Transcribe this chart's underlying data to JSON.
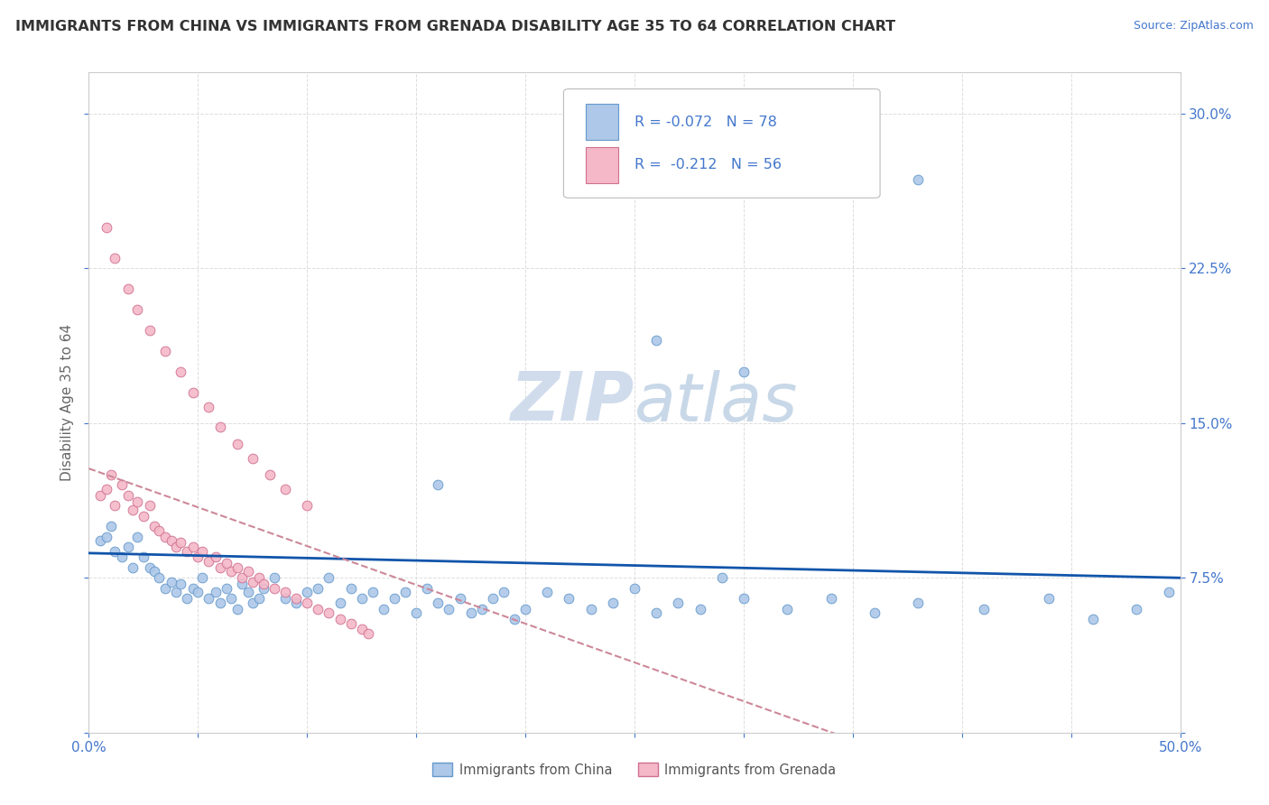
{
  "title": "IMMIGRANTS FROM CHINA VS IMMIGRANTS FROM GRENADA DISABILITY AGE 35 TO 64 CORRELATION CHART",
  "source_text": "Source: ZipAtlas.com",
  "ylabel": "Disability Age 35 to 64",
  "xlim": [
    0.0,
    0.5
  ],
  "ylim": [
    0.0,
    0.32
  ],
  "background_color": "#ffffff",
  "plot_bg_color": "#ffffff",
  "grid_color": "#dddddd",
  "china_color": "#adc8e8",
  "china_edge_color": "#6699cc",
  "grenada_color": "#f4b8c8",
  "grenada_edge_color": "#d07090",
  "trend_china_color": "#1155aa",
  "trend_grenada_color": "#cc8899",
  "R_china": -0.072,
  "N_china": 78,
  "R_grenada": -0.212,
  "N_grenada": 56,
  "legend_label_color": "#4477cc",
  "watermark_color": "#d8e4f0",
  "china_label": "Immigrants from China",
  "grenada_label": "Immigrants from Grenada",
  "china_x": [
    0.005,
    0.008,
    0.01,
    0.012,
    0.015,
    0.018,
    0.02,
    0.022,
    0.025,
    0.028,
    0.03,
    0.032,
    0.035,
    0.038,
    0.04,
    0.042,
    0.045,
    0.048,
    0.05,
    0.052,
    0.055,
    0.058,
    0.06,
    0.063,
    0.065,
    0.068,
    0.07,
    0.073,
    0.075,
    0.078,
    0.08,
    0.085,
    0.09,
    0.095,
    0.1,
    0.105,
    0.11,
    0.115,
    0.12,
    0.125,
    0.13,
    0.135,
    0.14,
    0.145,
    0.15,
    0.155,
    0.16,
    0.165,
    0.17,
    0.175,
    0.18,
    0.185,
    0.19,
    0.195,
    0.2,
    0.21,
    0.22,
    0.23,
    0.24,
    0.25,
    0.26,
    0.27,
    0.28,
    0.29,
    0.3,
    0.32,
    0.34,
    0.36,
    0.38,
    0.41,
    0.44,
    0.46,
    0.48,
    0.3,
    0.16,
    0.26,
    0.38,
    0.495
  ],
  "china_y": [
    0.093,
    0.095,
    0.1,
    0.088,
    0.085,
    0.09,
    0.08,
    0.095,
    0.085,
    0.08,
    0.078,
    0.075,
    0.07,
    0.073,
    0.068,
    0.072,
    0.065,
    0.07,
    0.068,
    0.075,
    0.065,
    0.068,
    0.063,
    0.07,
    0.065,
    0.06,
    0.072,
    0.068,
    0.063,
    0.065,
    0.07,
    0.075,
    0.065,
    0.063,
    0.068,
    0.07,
    0.075,
    0.063,
    0.07,
    0.065,
    0.068,
    0.06,
    0.065,
    0.068,
    0.058,
    0.07,
    0.063,
    0.06,
    0.065,
    0.058,
    0.06,
    0.065,
    0.068,
    0.055,
    0.06,
    0.068,
    0.065,
    0.06,
    0.063,
    0.07,
    0.058,
    0.063,
    0.06,
    0.075,
    0.065,
    0.06,
    0.065,
    0.058,
    0.063,
    0.06,
    0.065,
    0.055,
    0.06,
    0.175,
    0.12,
    0.19,
    0.268,
    0.068
  ],
  "grenada_x": [
    0.005,
    0.008,
    0.01,
    0.012,
    0.015,
    0.018,
    0.02,
    0.022,
    0.025,
    0.028,
    0.03,
    0.032,
    0.035,
    0.038,
    0.04,
    0.042,
    0.045,
    0.048,
    0.05,
    0.052,
    0.055,
    0.058,
    0.06,
    0.063,
    0.065,
    0.068,
    0.07,
    0.073,
    0.075,
    0.078,
    0.08,
    0.085,
    0.09,
    0.095,
    0.1,
    0.105,
    0.11,
    0.115,
    0.12,
    0.125,
    0.128,
    0.008,
    0.012,
    0.018,
    0.022,
    0.028,
    0.035,
    0.042,
    0.048,
    0.055,
    0.06,
    0.068,
    0.075,
    0.083,
    0.09,
    0.1
  ],
  "grenada_y": [
    0.115,
    0.118,
    0.125,
    0.11,
    0.12,
    0.115,
    0.108,
    0.112,
    0.105,
    0.11,
    0.1,
    0.098,
    0.095,
    0.093,
    0.09,
    0.092,
    0.088,
    0.09,
    0.085,
    0.088,
    0.083,
    0.085,
    0.08,
    0.082,
    0.078,
    0.08,
    0.075,
    0.078,
    0.073,
    0.075,
    0.072,
    0.07,
    0.068,
    0.065,
    0.063,
    0.06,
    0.058,
    0.055,
    0.053,
    0.05,
    0.048,
    0.245,
    0.23,
    0.215,
    0.205,
    0.195,
    0.185,
    0.175,
    0.165,
    0.158,
    0.148,
    0.14,
    0.133,
    0.125,
    0.118,
    0.11
  ]
}
